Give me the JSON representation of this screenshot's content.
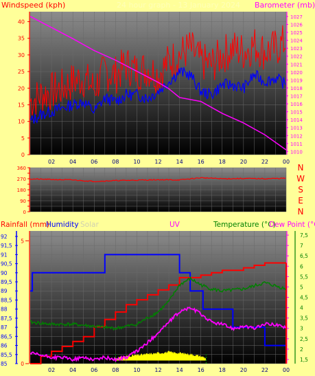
{
  "top_panel": {
    "left_label": "Windspeed (kph)",
    "right_label": "Barometer (mb)",
    "overlay_text": "24 hour graph - 13 January 2024"
  },
  "wind_dir_panel": {
    "compass": [
      "N",
      "W",
      "S",
      "E",
      "N"
    ]
  },
  "bottom_panel": {
    "labels": {
      "rainfall": "Rainfall (mm)",
      "humidity": "Humidity",
      "solar": "Solar",
      "uv": "UV",
      "temperature": "Temperature (°C)",
      "dewpoint": "Dew Point (°C"
    }
  },
  "colors": {
    "background": "#ffff99",
    "plot_top": "#8c8c8c",
    "plot_bottom": "#000000",
    "wind_gust": "#ff0000",
    "wind_avg": "#0000ff",
    "barometer": "#ff00ff",
    "wind_dir": "#ff0000",
    "rain": "#ff0000",
    "humidity": "#0000ff",
    "temperature": "#ff00ff",
    "dewpoint": "#008000",
    "solar": "#ffff00",
    "uv": "#008000",
    "label_red": "#ff0000",
    "label_blue": "#0000ff",
    "label_green": "#008000",
    "label_magenta": "#ff00ff",
    "label_grey": "#d0d0b0"
  },
  "chart_data": [
    {
      "type": "line",
      "name": "wind_barometer",
      "x_ticks": [
        "02",
        "04",
        "06",
        "08",
        "10",
        "12",
        "14",
        "16",
        "18",
        "20",
        "22",
        "00"
      ],
      "x_range": [
        0,
        24
      ],
      "y_left": {
        "ticks": [
          0,
          5,
          10,
          15,
          20,
          25,
          30,
          35,
          40
        ],
        "range": [
          0,
          43
        ]
      },
      "y_right": {
        "ticks": [
          1010,
          1011,
          1012,
          1013,
          1014,
          1015,
          1016,
          1017,
          1018,
          1019,
          1020,
          1021,
          1022,
          1023,
          1024,
          1025,
          1026,
          1027
        ],
        "range": [
          1009.6,
          1027.6
        ]
      },
      "series": [
        {
          "key": "gust",
          "axis": "left",
          "x": [
            0,
            1,
            2,
            3,
            4,
            5,
            6,
            7,
            8,
            9,
            10,
            11,
            12,
            13,
            14,
            15,
            16,
            17,
            18,
            19,
            20,
            21,
            22,
            23,
            24
          ],
          "values": [
            16,
            18,
            19,
            20,
            22,
            23,
            20,
            25,
            24,
            27,
            25,
            26,
            24,
            28,
            30,
            32,
            28,
            27,
            30,
            32,
            31,
            33,
            31,
            32,
            34
          ]
        },
        {
          "key": "avg",
          "axis": "left",
          "x": [
            0,
            1,
            2,
            3,
            4,
            5,
            6,
            7,
            8,
            9,
            10,
            11,
            12,
            13,
            14,
            15,
            16,
            17,
            18,
            19,
            20,
            21,
            22,
            23,
            24
          ],
          "values": [
            10,
            12,
            13,
            14,
            15,
            16,
            13,
            17,
            16,
            18,
            18,
            17,
            19,
            22,
            25,
            24,
            19,
            18,
            21,
            21,
            20,
            24,
            22,
            23,
            21
          ]
        },
        {
          "key": "baro",
          "axis": "right",
          "x": [
            0,
            2,
            4,
            6,
            8,
            10,
            12,
            13,
            14,
            16,
            18,
            20,
            22,
            24
          ],
          "values": [
            1027,
            1025.6,
            1024.2,
            1022.7,
            1021.5,
            1020.1,
            1018.7,
            1017.9,
            1016.8,
            1016.3,
            1014.8,
            1013.6,
            1012.1,
            1010.2
          ]
        }
      ]
    },
    {
      "type": "line",
      "name": "wind_direction",
      "x_range": [
        0,
        24
      ],
      "y": {
        "ticks": [
          0,
          45,
          90,
          135,
          180,
          225,
          270,
          315,
          360
        ],
        "range": [
          0,
          360
        ]
      },
      "series": [
        {
          "key": "dir",
          "x": [
            0,
            2,
            4,
            6,
            8,
            10,
            12,
            14,
            16,
            18,
            20,
            22,
            24
          ],
          "values": [
            268,
            264,
            260,
            248,
            255,
            258,
            262,
            260,
            278,
            270,
            272,
            270,
            274
          ]
        }
      ]
    },
    {
      "type": "line",
      "name": "rain_humidity_temperature",
      "x_range": [
        0,
        24
      ],
      "y_humidity": {
        "ticks": [
          "85",
          "85,5",
          "86",
          "86,5",
          "87",
          "87,5",
          "88",
          "88,5",
          "89",
          "89,5",
          "90",
          "90,5",
          "91",
          "91,5",
          "92"
        ],
        "range": [
          85,
          92.3
        ]
      },
      "y_rain": {
        "ticks": [
          0,
          5
        ],
        "range": [
          0,
          5.4
        ]
      },
      "y_temp": {
        "ticks": [
          "1,5",
          "2",
          "2,5",
          "3",
          "3,5",
          "4",
          "4,5",
          "5",
          "5,5",
          "6",
          "6,5",
          "7",
          "7,5"
        ],
        "range": [
          1.3,
          7.7
        ]
      },
      "series": [
        {
          "key": "humidity",
          "axis": "humidity",
          "step": true,
          "x": [
            0,
            0.2,
            7,
            8,
            14,
            15,
            16,
            16.2,
            19,
            20,
            22,
            24
          ],
          "values": [
            89,
            90,
            91,
            91,
            90,
            89,
            89,
            88,
            87,
            87,
            86,
            87
          ]
        },
        {
          "key": "rain",
          "axis": "rain",
          "step": true,
          "x": [
            0,
            1,
            2,
            3,
            4,
            5,
            6,
            7,
            8,
            9,
            10,
            11,
            12,
            13,
            14,
            16,
            17,
            18,
            20,
            21,
            22,
            23,
            24
          ],
          "values": [
            0,
            0.3,
            0.5,
            0.7,
            0.9,
            1.1,
            1.5,
            1.8,
            2.1,
            2.4,
            2.6,
            2.8,
            3.0,
            3.2,
            3.5,
            3.6,
            3.7,
            3.8,
            3.9,
            4.0,
            4.1,
            4.1,
            4.1
          ]
        },
        {
          "key": "temperature",
          "axis": "temp",
          "x": [
            0,
            1,
            2,
            3,
            4,
            5,
            6,
            7,
            8,
            9,
            10,
            11,
            12,
            13,
            14,
            15,
            16,
            17,
            18,
            19,
            20,
            21,
            22,
            23,
            24
          ],
          "values": [
            1.8,
            1.7,
            1.6,
            1.6,
            1.5,
            1.6,
            1.5,
            1.6,
            1.5,
            1.6,
            1.9,
            2.3,
            2.8,
            3.3,
            3.8,
            4.0,
            3.7,
            3.3,
            3.2,
            3.0,
            3.1,
            3.0,
            3.2,
            3.2,
            3.0
          ]
        },
        {
          "key": "dewpoint",
          "axis": "temp",
          "x": [
            0,
            2,
            4,
            6,
            8,
            10,
            12,
            13,
            14,
            15,
            16,
            17,
            18,
            20,
            22,
            24
          ],
          "values": [
            3.3,
            3.2,
            3.2,
            3.1,
            3.0,
            3.2,
            3.8,
            4.3,
            5.1,
            5.4,
            5.1,
            4.9,
            4.8,
            4.9,
            5.2,
            4.9
          ]
        },
        {
          "key": "solar",
          "axis": "temp",
          "x": [
            8,
            9,
            10,
            11,
            12,
            13,
            14,
            15,
            16,
            16.5
          ],
          "values": [
            1.5,
            1.6,
            1.65,
            1.7,
            1.75,
            1.8,
            1.75,
            1.7,
            1.6,
            1.5
          ]
        }
      ]
    }
  ]
}
